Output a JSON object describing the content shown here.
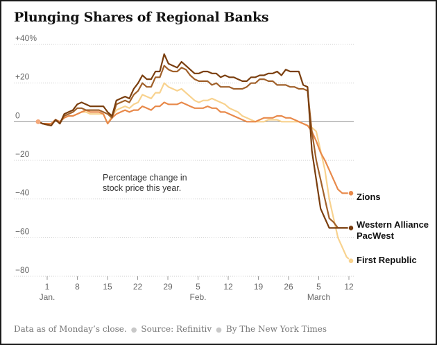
{
  "title": "Plunging Shares of Regional Banks",
  "footer": {
    "note": "Data as of Monday’s close.",
    "source": "Source: Refinitiv",
    "credit": "By The New York Times"
  },
  "chart_data": {
    "type": "line",
    "annotation": [
      "Percentage change in",
      "stock price this year."
    ],
    "ylim": [
      -80,
      40
    ],
    "yticks": [
      {
        "value": 40,
        "label": "+40%"
      },
      {
        "value": 20,
        "label": "+20"
      },
      {
        "value": 0,
        "label": "0"
      },
      {
        "value": -20,
        "label": "−20"
      },
      {
        "value": -40,
        "label": "−40"
      },
      {
        "value": -60,
        "label": "−60"
      },
      {
        "value": -80,
        "label": "−80"
      }
    ],
    "xticks": [
      {
        "label": "1",
        "sub": "Jan."
      },
      {
        "label": "8",
        "sub": ""
      },
      {
        "label": "15",
        "sub": ""
      },
      {
        "label": "22",
        "sub": ""
      },
      {
        "label": "29",
        "sub": ""
      },
      {
        "label": "5",
        "sub": "Feb."
      },
      {
        "label": "12",
        "sub": ""
      },
      {
        "label": "19",
        "sub": ""
      },
      {
        "label": "26",
        "sub": ""
      },
      {
        "label": "5",
        "sub": "March"
      },
      {
        "label": "12",
        "sub": ""
      }
    ],
    "x": [
      0,
      1,
      2,
      3,
      4,
      5,
      6,
      7,
      8,
      9,
      10,
      11,
      12,
      13,
      14,
      15,
      16,
      17,
      18,
      19,
      20,
      21,
      22,
      23,
      24,
      25,
      26,
      27,
      28,
      29,
      30,
      31,
      32,
      33,
      34,
      35,
      36,
      37,
      38,
      39,
      40,
      41,
      42,
      43,
      44,
      45,
      46,
      47,
      48,
      49,
      50,
      51,
      52,
      53,
      54,
      55,
      56,
      57,
      58,
      59,
      60,
      61,
      62,
      63,
      64,
      65,
      66,
      67,
      68,
      69,
      70,
      71,
      72
    ],
    "series": [
      {
        "name": "Western Alliance",
        "color": "#7a3e0e",
        "values": [
          0,
          -1,
          -1.5,
          -2,
          1,
          -1,
          4,
          5,
          6,
          9,
          10,
          9,
          8,
          8,
          8,
          8,
          5,
          3,
          11,
          12,
          13,
          12,
          17,
          20,
          24,
          22,
          22,
          26,
          26,
          35,
          30,
          29,
          28,
          31,
          29,
          27,
          25,
          25,
          26,
          26,
          25,
          25,
          23,
          24,
          23,
          23,
          22,
          21,
          21,
          23,
          23,
          24,
          24,
          25,
          25,
          26,
          24,
          27,
          26,
          26,
          26,
          19,
          18,
          -15,
          -30,
          -45,
          -50,
          -55,
          -55,
          -55,
          -55,
          -55,
          -55
        ]
      },
      {
        "name": "PacWest",
        "color": "#a0602a",
        "values": [
          0,
          -1,
          -1.5,
          -2,
          1,
          -1,
          3,
          4,
          5,
          7,
          7,
          6,
          6,
          6,
          6,
          5,
          4,
          2,
          9,
          10,
          11,
          10,
          14,
          16,
          20,
          18,
          18,
          23,
          23,
          29,
          27,
          26,
          26,
          28,
          27,
          24,
          22,
          21,
          21,
          21,
          19,
          20,
          18,
          18,
          18,
          17,
          17,
          17,
          18,
          20,
          20,
          22,
          22,
          21,
          21,
          19,
          19,
          19,
          18,
          18,
          17,
          17,
          16,
          -5,
          -20,
          -30,
          -40,
          -50,
          -52,
          -55,
          -55,
          -55,
          -55
        ]
      },
      {
        "name": "Zions",
        "color": "#e8894a",
        "values": [
          0,
          -1,
          -1,
          -1,
          1,
          0,
          2,
          3,
          3,
          4,
          5,
          6,
          5,
          5,
          5,
          4,
          -1,
          2,
          4,
          5,
          6,
          5,
          6,
          6,
          8,
          7,
          6,
          8,
          8,
          10,
          9,
          9,
          9,
          10,
          9,
          8,
          7,
          7,
          7,
          8,
          7,
          7,
          5,
          5,
          4,
          3,
          2,
          1,
          0,
          0,
          0,
          1,
          2,
          2,
          2,
          3,
          3,
          2,
          2,
          1,
          0,
          -1,
          -2,
          -5,
          -10,
          -16,
          -20,
          -25,
          -30,
          -35,
          -37,
          -37,
          -37
        ]
      },
      {
        "name": "First Republic",
        "color": "#f8d28e",
        "values": [
          0,
          -1,
          -1,
          -1,
          1,
          0,
          2,
          3,
          3,
          4,
          5,
          5,
          4,
          4,
          4,
          4,
          -1,
          3,
          6,
          7,
          8,
          7,
          9,
          10,
          14,
          13,
          12,
          15,
          15,
          20,
          18,
          17,
          16,
          17,
          15,
          13,
          11,
          10,
          11,
          11,
          12,
          11,
          10,
          9,
          7,
          6,
          5,
          3,
          2,
          1,
          0,
          0,
          0,
          1,
          1,
          1,
          0,
          0,
          0,
          0,
          0,
          -1,
          -2,
          -3,
          -5,
          -15,
          -25,
          -40,
          -50,
          -60,
          -65,
          -70,
          -72
        ]
      }
    ]
  }
}
